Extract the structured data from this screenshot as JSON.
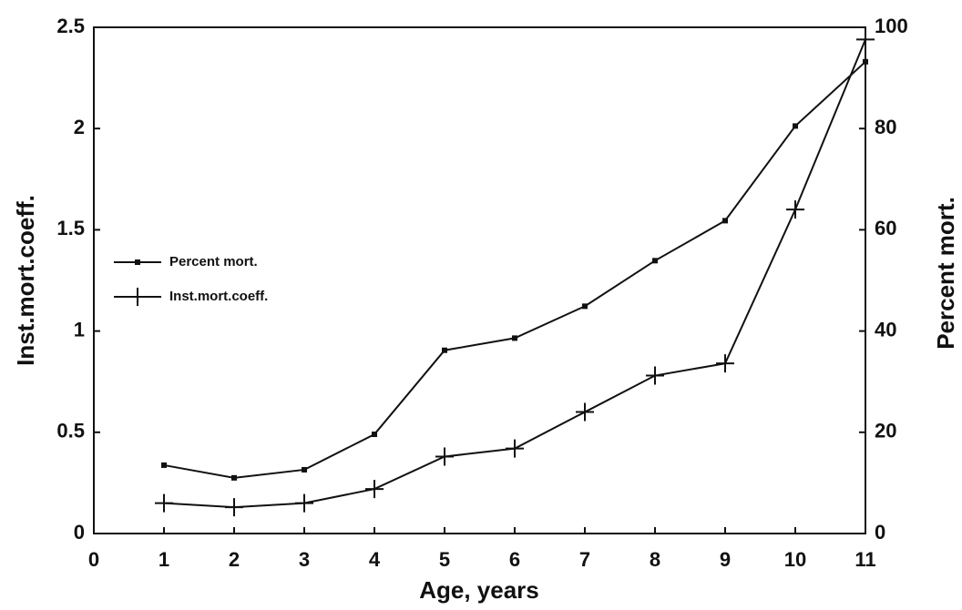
{
  "chart_data": {
    "type": "line",
    "x_label": "Age, years",
    "y_label": "Inst.mort.coeff.",
    "y2_label": "Percent mort.",
    "xlim": [
      0,
      11
    ],
    "xticks": [
      0,
      1,
      2,
      3,
      4,
      5,
      6,
      7,
      8,
      9,
      10,
      11
    ],
    "ylim": [
      0,
      2.5
    ],
    "yticks": [
      0,
      0.5,
      1,
      1.5,
      2,
      2.5
    ],
    "y2lim": [
      0,
      100
    ],
    "y2ticks": [
      0,
      20,
      40,
      60,
      80,
      100
    ],
    "legend": "left",
    "x": [
      1,
      2,
      3,
      4,
      5,
      6,
      7,
      8,
      9,
      10,
      11
    ],
    "series": [
      {
        "name": "Percent mort.",
        "color": "#111111",
        "marker": "square",
        "axis": "y2",
        "values": [
          13.5,
          11,
          12.6,
          19.6,
          36.2,
          38.6,
          44.9,
          53.9,
          61.8,
          80.5,
          93.2
        ]
      },
      {
        "name": "Inst.mort.coeff.",
        "color": "#111111",
        "marker": "plus",
        "axis": "y",
        "values": [
          0.15,
          0.13,
          0.15,
          0.22,
          0.38,
          0.42,
          0.6,
          0.78,
          0.84,
          1.6,
          2.44
        ]
      }
    ]
  }
}
